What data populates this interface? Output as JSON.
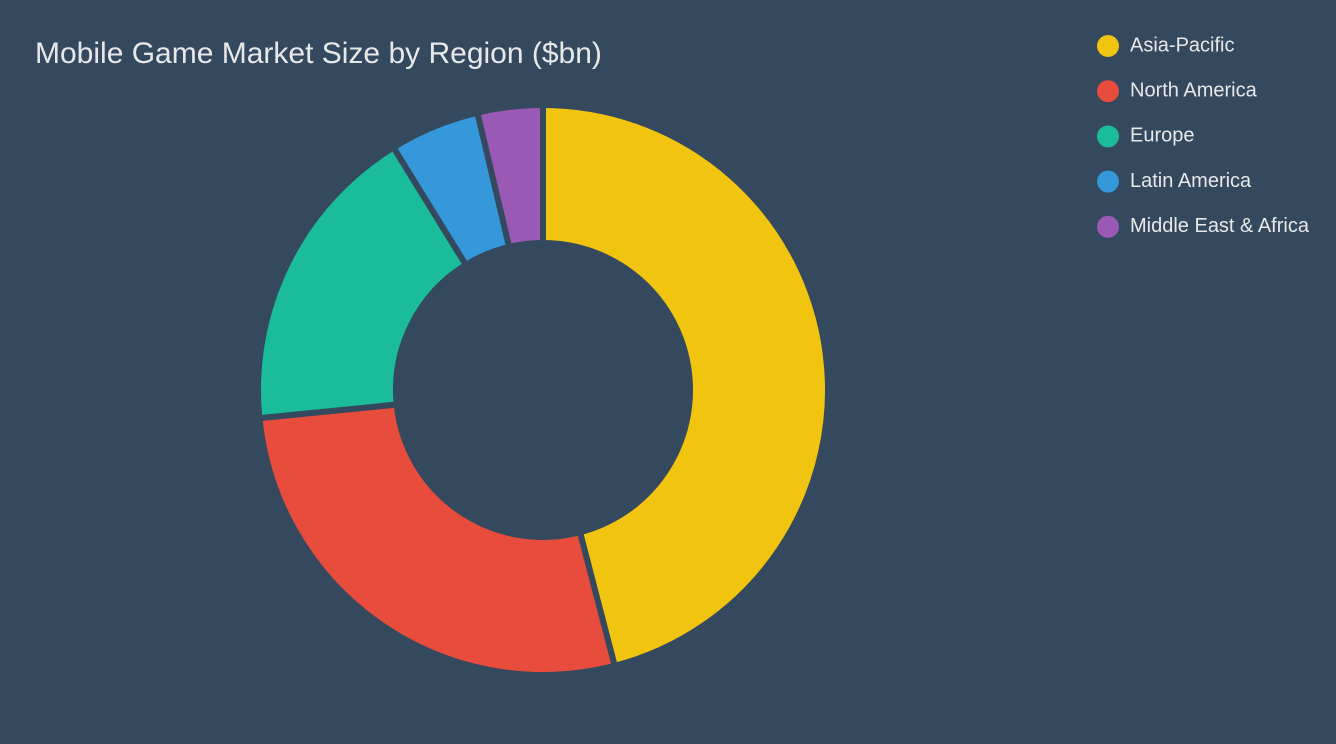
{
  "chart_data": {
    "type": "donut",
    "title": "Mobile Game Market Size by Region ($bn)",
    "categories": [
      "Asia-Pacific",
      "North America",
      "Europe",
      "Latin America",
      "Middle East & Africa"
    ],
    "values": [
      46,
      27.5,
      17.8,
      5.1,
      3.7
    ],
    "colors": [
      "#f1c40f",
      "#e74c3c",
      "#1abc9c",
      "#3498db",
      "#9b59b6"
    ],
    "legend": "top-right"
  }
}
